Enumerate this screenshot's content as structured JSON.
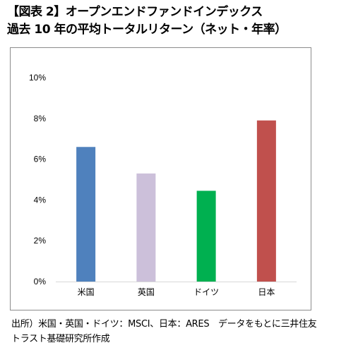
{
  "title_line1": "【図表 2】オープンエンドファンドインデックス",
  "title_line2": "過去 10 年の平均トータルリターン（ネット・年率）",
  "source_line1": "出所）米国・英国・ドイツ：MSCI、日本：ARES　データをもとに三井住友",
  "source_line2": "トラスト基礎研究所作成",
  "chart_data": {
    "type": "bar",
    "title": "",
    "xlabel": "",
    "ylabel": "",
    "categories": [
      "米国",
      "英国",
      "ドイツ",
      "日本"
    ],
    "values": [
      6.6,
      5.3,
      4.45,
      7.9
    ],
    "colors": [
      "#4f81bd",
      "#ccc0da",
      "#00b050",
      "#c0504d"
    ],
    "ylim": [
      0,
      10
    ],
    "yticks": [
      0,
      2,
      4,
      6,
      8,
      10
    ],
    "ytick_labels": [
      "0%",
      "2%",
      "4%",
      "6%",
      "8%",
      "10%"
    ],
    "grid": false,
    "legend": "none"
  }
}
